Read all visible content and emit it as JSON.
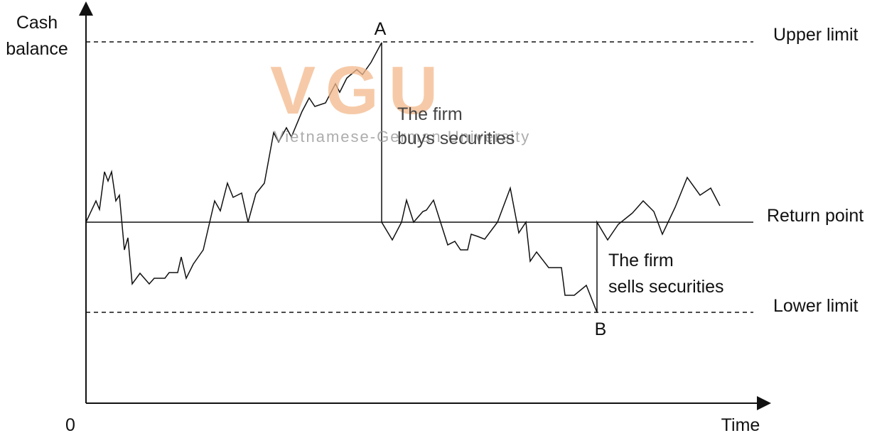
{
  "axes": {
    "y_label": [
      "Cash",
      "balance"
    ],
    "origin": "0",
    "x_label": "Time"
  },
  "levels": {
    "upper": "Upper limit",
    "return": "Return point",
    "lower": "Lower limit"
  },
  "points": {
    "a": "A",
    "b": "B"
  },
  "annotations": {
    "buy": [
      "The firm",
      "buys securities"
    ],
    "sell": [
      "The firm",
      "sells securities"
    ]
  },
  "watermark": {
    "logo": "VGU",
    "name": "Vietnamese-German University"
  }
}
